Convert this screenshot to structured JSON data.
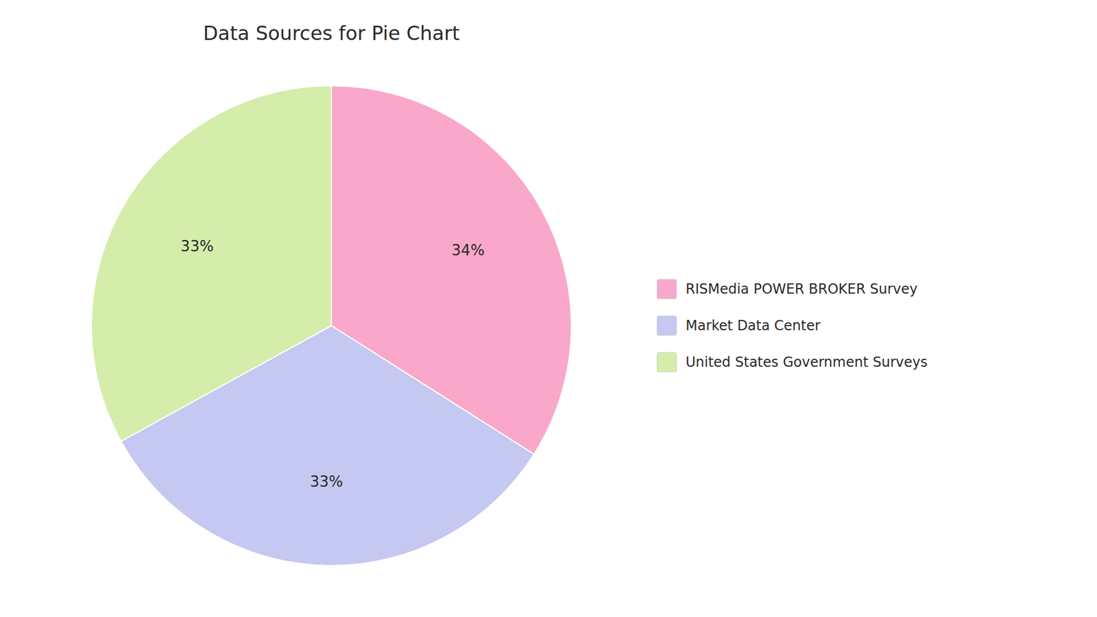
{
  "chart_data": {
    "type": "pie",
    "title": "Data Sources for Pie Chart",
    "categories": [
      "RISMedia POWER BROKER Survey",
      "Market Data Center",
      "United States Government Surveys"
    ],
    "values": [
      34,
      33,
      33
    ],
    "value_labels": [
      "34%",
      "33%",
      "33%"
    ],
    "colors": [
      "#f9a8c9",
      "#c5c8f0",
      "#d4edaa"
    ],
    "data_labels": true,
    "legend": "right"
  }
}
